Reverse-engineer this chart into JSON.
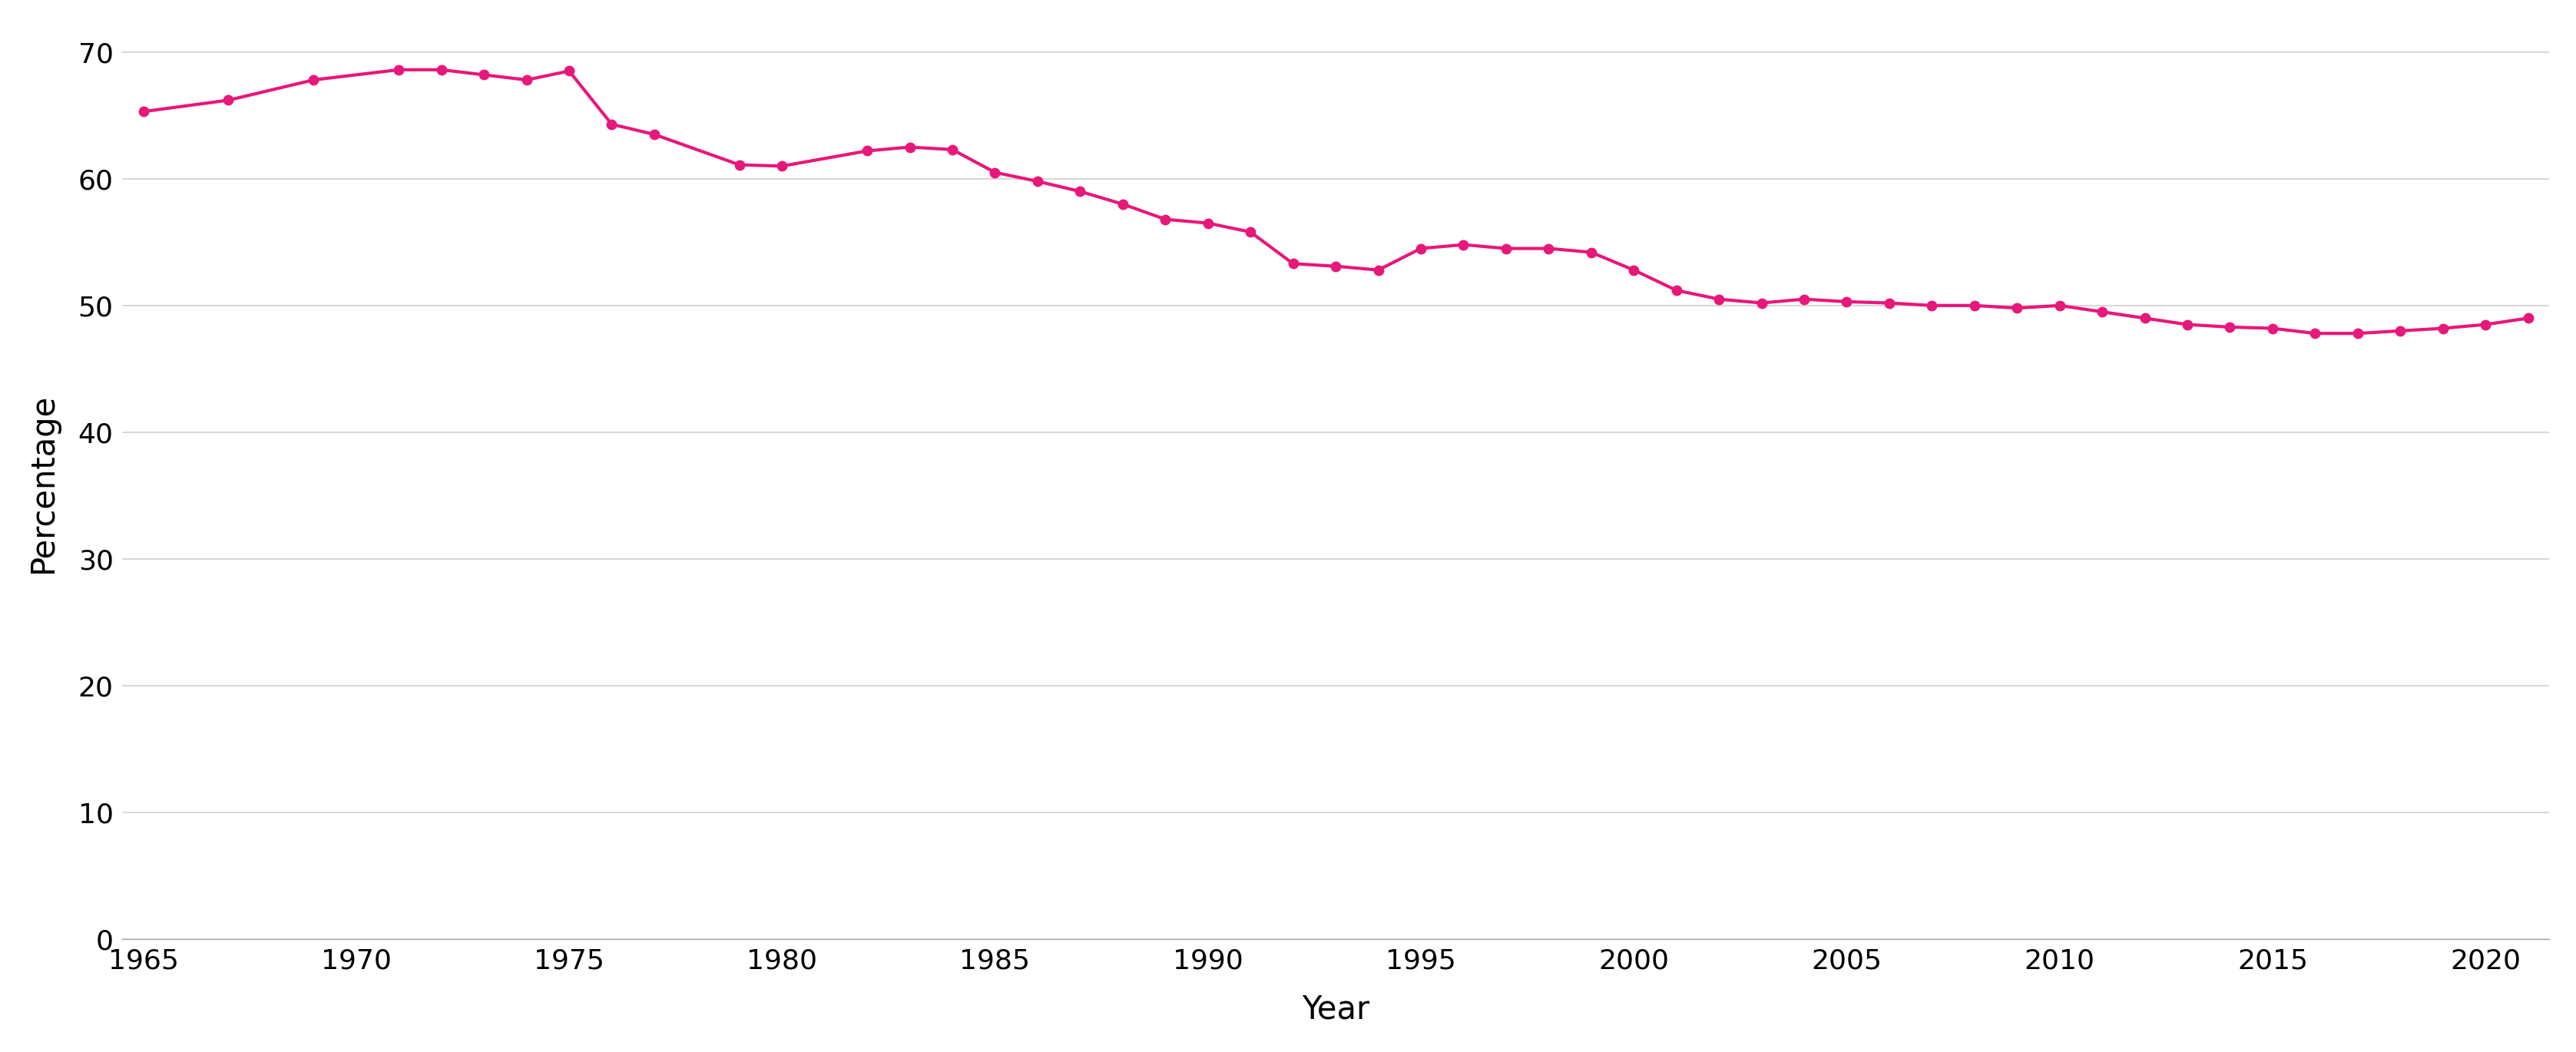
{
  "years": [
    1965,
    1967,
    1969,
    1971,
    1972,
    1973,
    1974,
    1975,
    1976,
    1977,
    1979,
    1980,
    1982,
    1983,
    1984,
    1985,
    1986,
    1987,
    1988,
    1989,
    1990,
    1991,
    1992,
    1993,
    1994,
    1995,
    1996,
    1997,
    1998,
    1999,
    2000,
    2001,
    2002,
    2003,
    2004,
    2005,
    2006,
    2007,
    2008,
    2009,
    2010,
    2011,
    2012,
    2013,
    2014,
    2015,
    2016,
    2017,
    2018,
    2019,
    2020,
    2021
  ],
  "values": [
    65.3,
    66.2,
    67.8,
    68.6,
    68.6,
    68.2,
    67.8,
    68.5,
    64.3,
    63.5,
    61.1,
    61.0,
    62.2,
    62.5,
    62.3,
    60.5,
    59.8,
    59.0,
    58.0,
    56.8,
    56.5,
    55.8,
    53.3,
    53.1,
    52.8,
    54.5,
    54.8,
    54.5,
    54.5,
    54.2,
    52.8,
    51.2,
    50.5,
    50.2,
    50.5,
    50.3,
    50.2,
    50.0,
    50.0,
    49.8,
    50.0,
    49.5,
    49.0,
    48.5,
    48.3,
    48.2,
    47.8,
    47.8,
    48.0,
    48.2,
    48.5,
    49.0
  ],
  "line_color": "#e8177a",
  "marker_color": "#e8177a",
  "marker_size": 10,
  "line_width": 3.0,
  "xlabel": "Year",
  "ylabel": "Percentage",
  "xlim_min": 1964.5,
  "xlim_max": 2021.5,
  "ylim_min": 0,
  "ylim_max": 72,
  "yticks": [
    0,
    10,
    20,
    30,
    40,
    50,
    60,
    70
  ],
  "xticks": [
    1965,
    1970,
    1975,
    1980,
    1985,
    1990,
    1995,
    2000,
    2005,
    2010,
    2015,
    2020
  ],
  "grid_color": "#d0d0d0",
  "background_color": "#ffffff",
  "tick_fontsize": 26,
  "label_fontsize": 30,
  "spine_color": "#aaaaaa"
}
